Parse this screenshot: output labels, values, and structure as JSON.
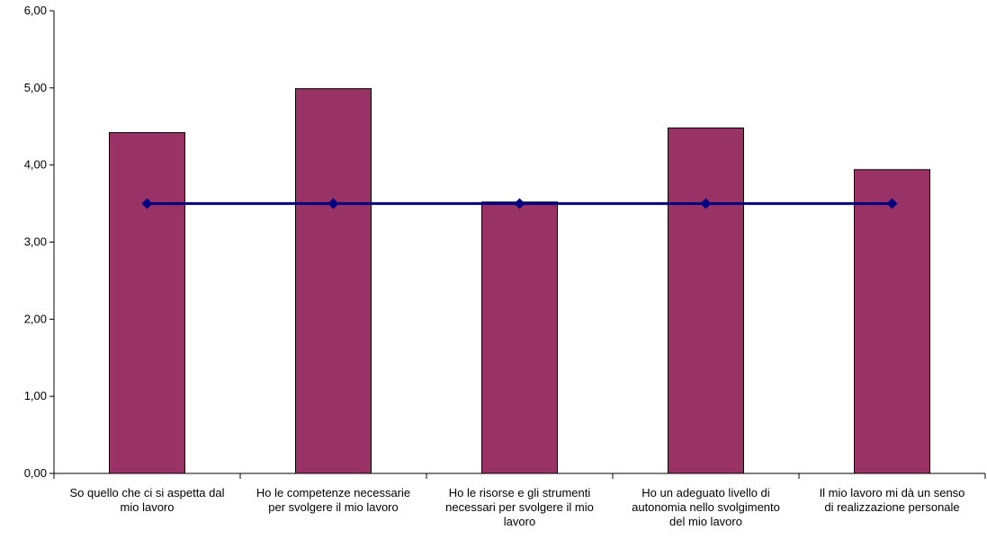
{
  "chart_data": {
    "type": "bar",
    "categories": [
      "So quello che ci si aspetta dal mio lavoro",
      "Ho le competenze necessarie per svolgere il mio lavoro",
      "Ho le risorse e gli strumenti necessari per svolgere il mio lavoro",
      "Ho un adeguato livello di autonomia nello svolgimento del mio lavoro",
      "Il mio lavoro mi dà un senso di realizzazione personale"
    ],
    "category_label_lines": [
      [
        "So quello che ci si aspetta dal",
        "mio lavoro"
      ],
      [
        "Ho le competenze necessarie",
        "per svolgere il mio lavoro"
      ],
      [
        "Ho le risorse e gli strumenti",
        "necessari per svolgere il mio",
        "lavoro"
      ],
      [
        "Ho un adeguato livello di",
        "autonomia nello svolgimento",
        "del mio lavoro"
      ],
      [
        "Il mio lavoro mi dà un senso",
        "di realizzazione personale"
      ]
    ],
    "series": [
      {
        "type": "bar",
        "values": [
          4.42,
          4.99,
          3.52,
          4.48,
          3.94
        ]
      },
      {
        "type": "line",
        "values": [
          3.5,
          3.5,
          3.5,
          3.5,
          3.5
        ]
      }
    ],
    "ylim": [
      0,
      6
    ],
    "yticks": [
      "0,00",
      "1,00",
      "2,00",
      "3,00",
      "4,00",
      "5,00",
      "6,00"
    ],
    "title": "",
    "xlabel": "",
    "ylabel": "",
    "grid": false,
    "legend": "none",
    "colors": {
      "bar": "#993366",
      "line": "#000080",
      "axis": "#000000"
    }
  }
}
